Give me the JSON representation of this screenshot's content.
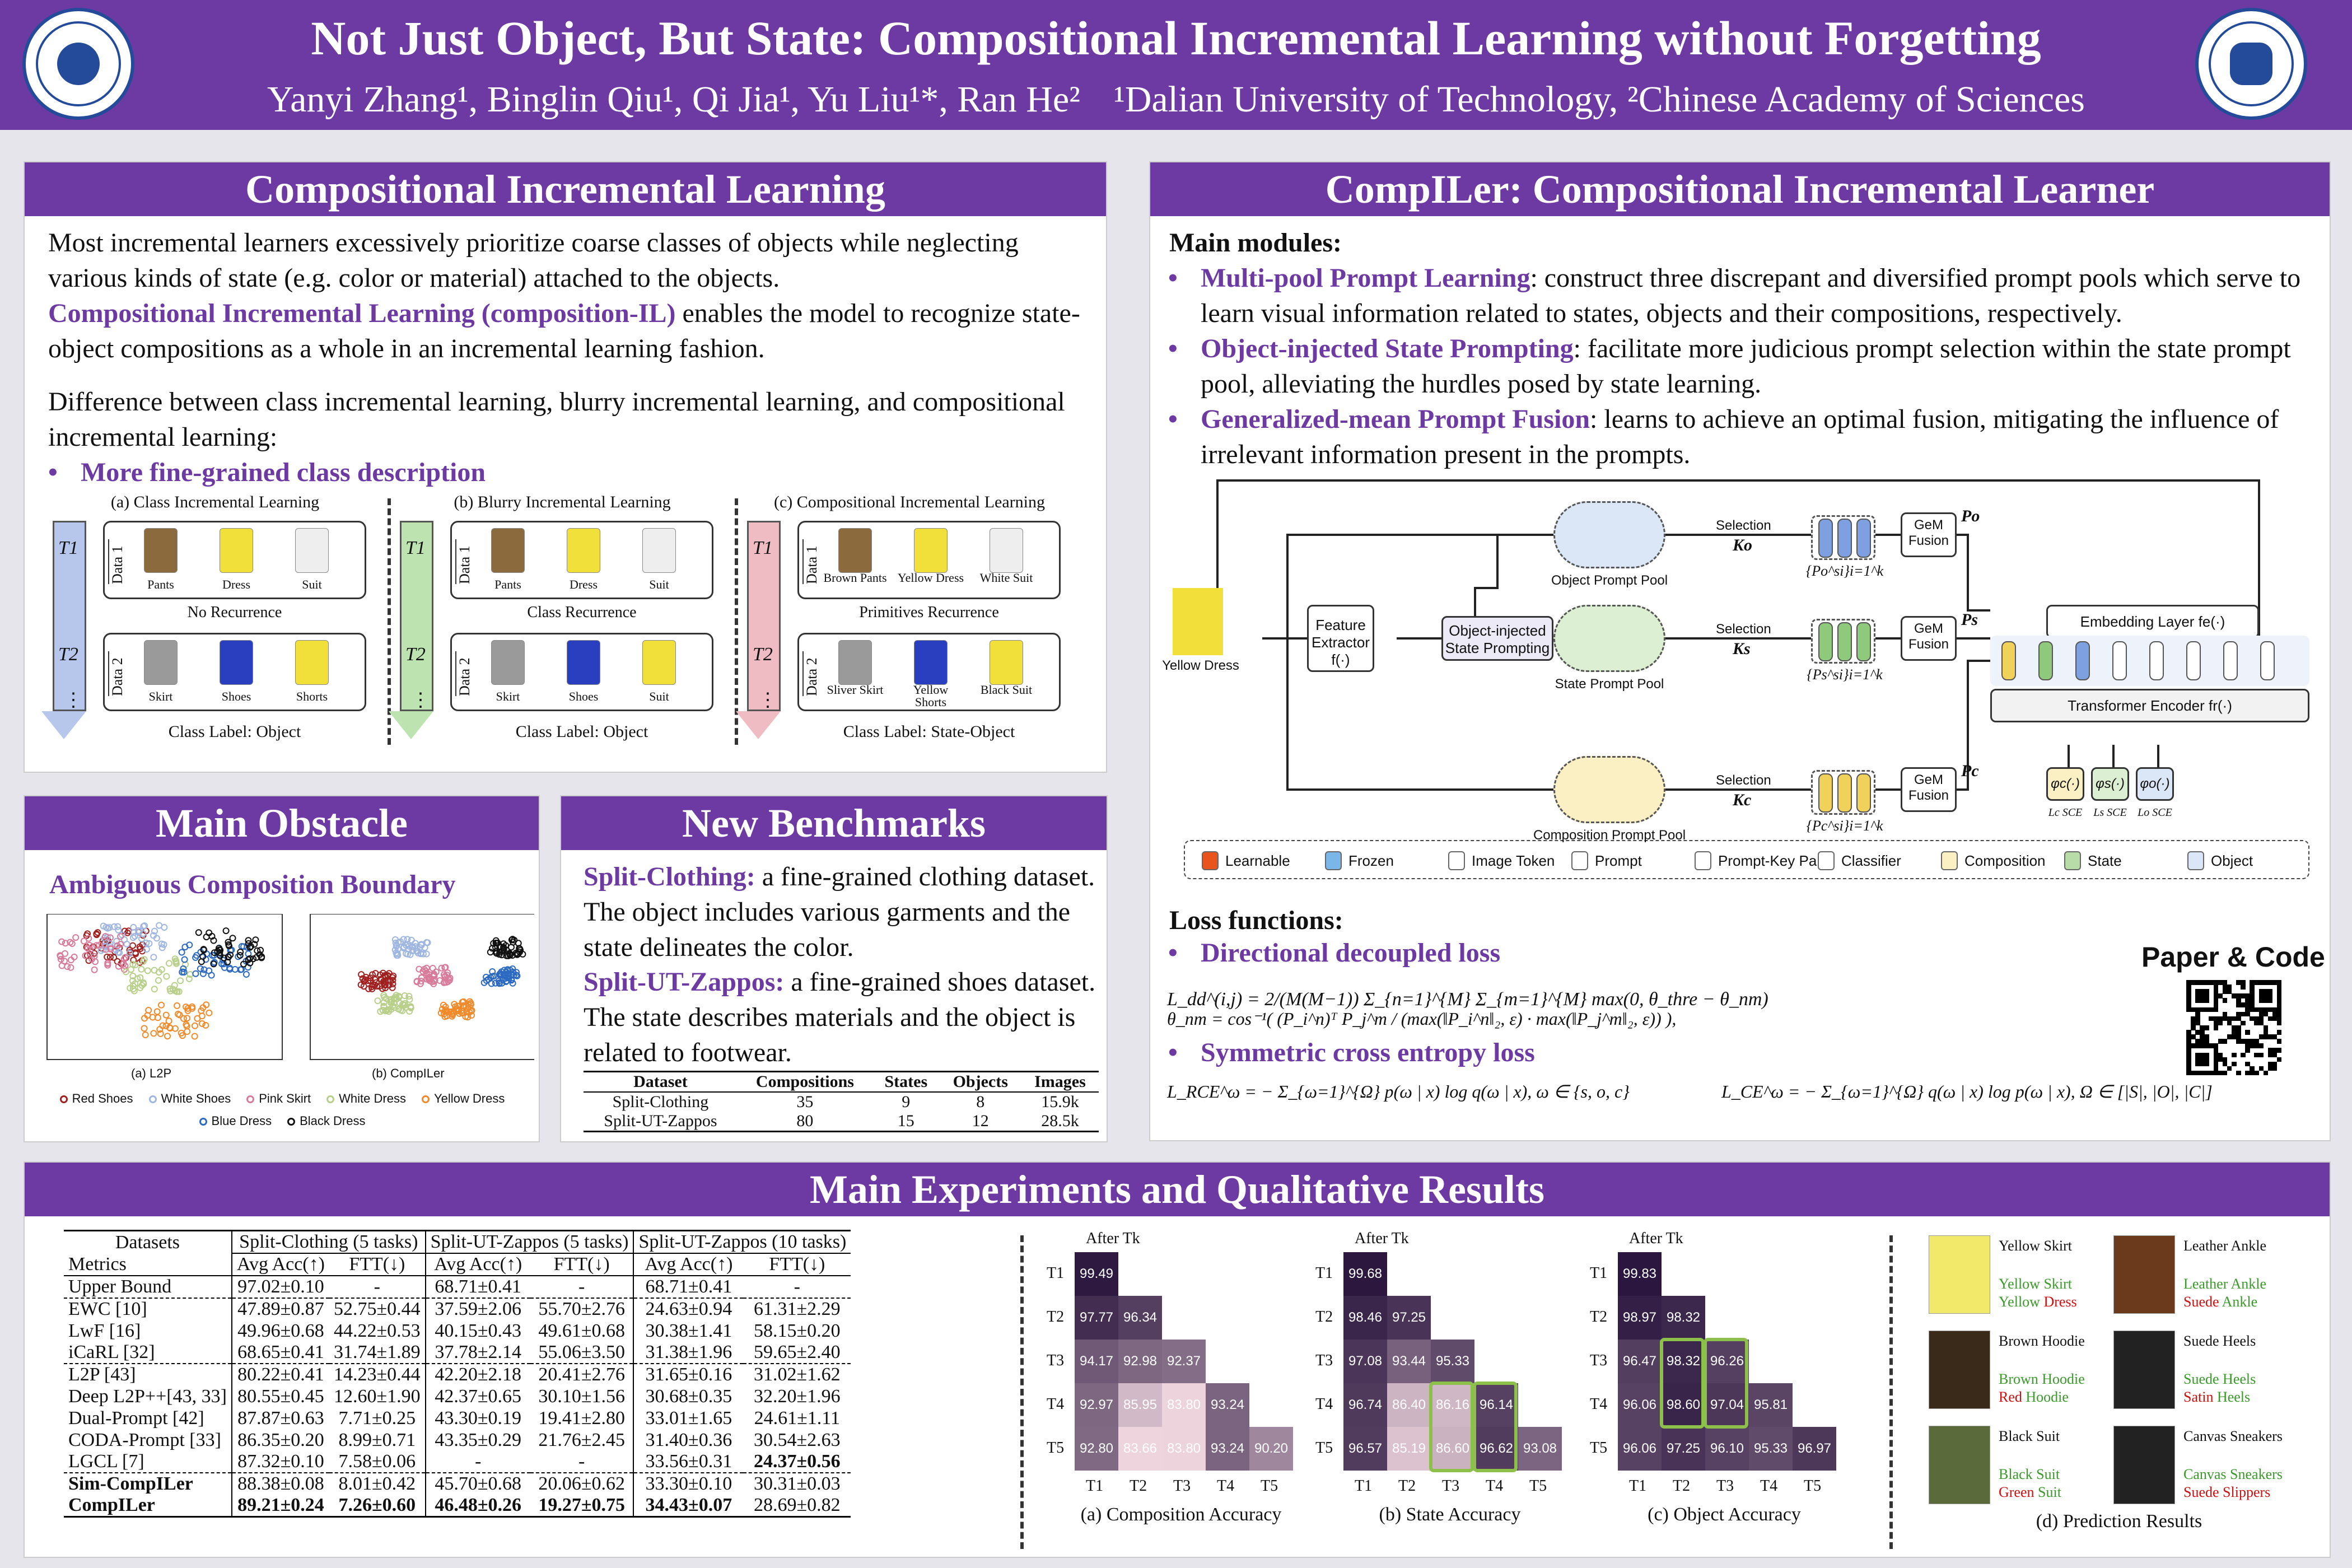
{
  "header": {
    "title": "Not Just Object, But State: Compositional Incremental Learning without Forgetting",
    "authors": "Yanyi Zhang¹, Binglin Qiu¹, Qi Jia¹, Yu Liu¹*, Ran He²",
    "affiliations": "¹Dalian University of Technology, ²Chinese Academy of Sciences",
    "logo_left": "dalian-university-logo",
    "logo_right": "chinese-academy-of-sciences-logo"
  },
  "cil": {
    "title": "Compositional Incremental Learning",
    "p1": "Most incremental learners excessively prioritize coarse classes of objects while neglecting various kinds of state (e.g. color or material) attached to the objects.",
    "p2_bold": "Compositional Incremental Learning (composition-IL)",
    "p2_rest": " enables the model to recognize state-object compositions as a whole in an incremental learning fashion.",
    "p3": "Difference between class incremental learning, blurry incremental learning, and compositional incremental learning:",
    "bullet": "More fine-grained class description",
    "fig_a": {
      "caption": "(a) Class Incremental Learning",
      "t1": "T1",
      "t2": "T2",
      "d1": "Data 1",
      "d2": "Data 2",
      "items1": [
        "Pants",
        "Dress",
        "Suit"
      ],
      "items2": [
        "Skirt",
        "Shoes",
        "Shorts"
      ],
      "note": "No Recurrence",
      "label": "Class Label: Object"
    },
    "fig_b": {
      "caption": "(b) Blurry Incremental Learning",
      "t1": "T1",
      "t2": "T2",
      "d1": "Data 1",
      "d2": "Data 2",
      "items1": [
        "Pants",
        "Dress",
        "Suit"
      ],
      "items2": [
        "Skirt",
        "Shoes",
        "Suit"
      ],
      "note": "Class Recurrence",
      "label": "Class Label: Object"
    },
    "fig_c": {
      "caption": "(c) Compositional Incremental Learning",
      "t1": "T1",
      "t2": "T2",
      "d1": "Data 1",
      "d2": "Data 2",
      "items1": [
        "Brown Pants",
        "Yellow Dress",
        "White Suit"
      ],
      "items2": [
        "Sliver Skirt",
        "Yellow Shorts",
        "Black Suit"
      ],
      "note": "Primitives Recurrence",
      "label": "Class Label: State-Object"
    },
    "ellipsis": "⋮"
  },
  "obstacle": {
    "title": "Main Obstacle",
    "subtitle": "Ambiguous Composition Boundary",
    "cap_a": "(a) L2P",
    "cap_b": "(b) CompILer",
    "legend": [
      {
        "name": "Red Shoes",
        "color": "#a02020"
      },
      {
        "name": "White Shoes",
        "color": "#9fb6e0"
      },
      {
        "name": "Pink Skirt",
        "color": "#d87a9a"
      },
      {
        "name": "White Dress",
        "color": "#b8cf8a"
      },
      {
        "name": "Yellow Dress",
        "color": "#f08a2a"
      },
      {
        "name": "Blue Dress",
        "color": "#2c6ac2"
      },
      {
        "name": "Black Dress",
        "color": "#111111"
      }
    ]
  },
  "bench": {
    "title": "New Benchmarks",
    "b1_bold": "Split-Clothing:",
    "b1": " a fine-grained clothing dataset. The object includes various garments and the state delineates the color.",
    "b2_bold": "Split-UT-Zappos:",
    "b2": " a fine-grained shoes dataset. The state describes materials and the object is related to footwear.",
    "headers": [
      "Dataset",
      "Compositions",
      "States",
      "Objects",
      "Images"
    ],
    "rows": [
      [
        "Split-Clothing",
        "35",
        "9",
        "8",
        "15.9k"
      ],
      [
        "Split-UT-Zappos",
        "80",
        "15",
        "12",
        "28.5k"
      ]
    ]
  },
  "compiler": {
    "title": "CompILer: Compositional Incremental Learner",
    "modules_title": "Main modules:",
    "m1_bold": "Multi-pool Prompt Learning",
    "m1": ": construct three discrepant and diversified prompt pools which serve to learn visual information related to states, objects and their compositions, respectively.",
    "m2_bold": "Object-injected State Prompting",
    "m2": ": facilitate more judicious prompt selection within the state prompt pool, alleviating the hurdles posed by state learning.",
    "m3_bold": "Generalized-mean Prompt Fusion",
    "m3": ": learns to achieve an optimal fusion, mitigating the influence of irrelevant information present in the prompts.",
    "diagram": {
      "input": "Yellow Dress",
      "extractor": "Feature Extractor f(·)",
      "ois": "Object-injected State Prompting",
      "pools": [
        "Object Prompt Pool",
        "State Prompt Pool",
        "Composition Prompt Pool"
      ],
      "selection": "Selection",
      "keys": [
        "Ko",
        "Ks",
        "Kc"
      ],
      "sets": [
        "{Po^si}i=1^k",
        "{Ps^si}i=1^k",
        "{Pc^si}i=1^k"
      ],
      "gem": "GeM Fusion",
      "outs": [
        "Po",
        "Ps",
        "Pc"
      ],
      "embed": "Embedding Layer fe(·)",
      "encoder": "Transformer Encoder fr(·)",
      "heads": [
        "φc(·)",
        "φs(·)",
        "φo(·)"
      ],
      "losses": [
        "Lc SCE",
        "Ls SCE",
        "Lo SCE"
      ],
      "legend": [
        "Learnable",
        "Frozen",
        "Image Token",
        "Prompt",
        "Prompt-Key Pair",
        "Classifier",
        "Composition",
        "State",
        "Object"
      ]
    },
    "loss_title": "Loss functions:",
    "l1": "Directional decoupled loss",
    "l1_eq": "L_dd^(i,j) = 2/(M(M−1)) Σ_{n=1}^{M} Σ_{m=1}^{M} max(0, θ_thre − θ_nm)",
    "l1_eq2": "θ_nm = cos⁻¹( (P_i^n)ᵀ P_j^m / (max(‖P_i^n‖₂, ε) · max(‖P_j^m‖₂, ε)) ),",
    "l2": "Symmetric cross entropy loss",
    "l2_eq": "L_RCE^ω = − Σ_{ω=1}^{Ω} p(ω | x) log q(ω | x), ω ∈ {s, o, c}",
    "l2_eq2": "L_CE^ω = − Σ_{ω=1}^{Ω} q(ω | x) log p(ω | x), Ω ∈ [|S|, |O|, |C|]",
    "paper_code": "Paper & Code"
  },
  "results": {
    "title": "Main Experiments and Qualitative Results",
    "table": {
      "h1": [
        "Datasets",
        "Split-Clothing (5 tasks)",
        "Split-UT-Zappos (5 tasks)",
        "Split-UT-Zappos (10 tasks)"
      ],
      "h2": [
        "Metrics",
        "Avg Acc(↑)",
        "FTT(↓)",
        "Avg Acc(↑)",
        "FTT(↓)",
        "Avg Acc(↑)",
        "FTT(↓)"
      ],
      "rows": [
        [
          "Upper Bound",
          "97.02±0.10",
          "-",
          "68.71±0.41",
          "-",
          "68.71±0.41",
          "-"
        ],
        [
          "EWC [10]",
          "47.89±0.87",
          "52.75±0.44",
          "37.59±2.06",
          "55.70±2.76",
          "24.63±0.94",
          "61.31±2.29"
        ],
        [
          "LwF [16]",
          "49.96±0.68",
          "44.22±0.53",
          "40.15±0.43",
          "49.61±0.68",
          "30.38±1.41",
          "58.15±0.20"
        ],
        [
          "iCaRL [32]",
          "68.65±0.41",
          "31.74±1.89",
          "37.78±2.14",
          "55.06±3.50",
          "31.38±1.96",
          "59.65±2.40"
        ],
        [
          "L2P [43]",
          "80.22±0.41",
          "14.23±0.44",
          "42.20±2.18",
          "20.41±2.76",
          "31.65±0.16",
          "31.02±1.62"
        ],
        [
          "Deep L2P++[43, 33]",
          "80.55±0.45",
          "12.60±1.90",
          "42.37±0.65",
          "30.10±1.56",
          "30.68±0.35",
          "32.20±1.96"
        ],
        [
          "Dual-Prompt [42]",
          "87.87±0.63",
          "7.71±0.25",
          "43.30±0.19",
          "19.41±2.80",
          "33.01±1.65",
          "24.61±1.11"
        ],
        [
          "CODA-Prompt [33]",
          "86.35±0.20",
          "8.99±0.71",
          "43.35±0.29",
          "21.76±2.45",
          "31.40±0.36",
          "30.54±2.63"
        ],
        [
          "LGCL [7]",
          "87.32±0.10",
          "7.58±0.06",
          "-",
          "-",
          "33.56±0.31",
          "24.37±0.56"
        ],
        [
          "Sim-CompILer",
          "88.38±0.08",
          "8.01±0.42",
          "45.70±0.68",
          "20.06±0.62",
          "33.30±0.10",
          "30.31±0.03"
        ],
        [
          "CompILer",
          "89.21±0.24",
          "7.26±0.60",
          "46.48±0.26",
          "19.27±0.75",
          "34.43±0.07",
          "28.69±0.82"
        ]
      ]
    },
    "heatmaps": [
      {
        "caption": "(a) Composition Accuracy",
        "rows": [
          [
            99.49
          ],
          [
            97.77,
            96.34
          ],
          [
            94.17,
            92.98,
            92.37
          ],
          [
            92.97,
            85.95,
            83.8,
            93.24
          ],
          [
            92.8,
            83.66,
            83.8,
            93.24,
            90.2
          ]
        ]
      },
      {
        "caption": "(b) State Accuracy",
        "rows": [
          [
            99.68
          ],
          [
            98.46,
            97.25
          ],
          [
            97.08,
            93.44,
            95.33
          ],
          [
            96.74,
            86.4,
            86.16,
            96.14
          ],
          [
            96.57,
            85.19,
            86.6,
            96.62,
            93.08
          ]
        ]
      },
      {
        "caption": "(c) Object Accuracy",
        "rows": [
          [
            99.83
          ],
          [
            98.97,
            98.32
          ],
          [
            96.47,
            98.32,
            96.26
          ],
          [
            96.06,
            98.6,
            97.04,
            95.81
          ],
          [
            96.06,
            97.25,
            96.1,
            95.33,
            96.97
          ]
        ]
      }
    ],
    "after": "After Tk",
    "tlabels": [
      "T1",
      "T2",
      "T3",
      "T4",
      "T5"
    ],
    "pred_caption": "(d) Prediction Results",
    "preds": [
      {
        "title": "Yellow Skirt",
        "gt": "Yellow Skirt",
        "pred_s": "Yellow",
        "pred_o": "Dress",
        "s_ok": true,
        "o_ok": false
      },
      {
        "title": "Leather Ankle",
        "gt": "Leather Ankle",
        "pred_s": "Suede",
        "pred_o": "Ankle",
        "s_ok": false,
        "o_ok": true
      },
      {
        "title": "Brown Hoodie",
        "gt": "Brown Hoodie",
        "pred_s": "Red",
        "pred_o": "Hoodie",
        "s_ok": false,
        "o_ok": true
      },
      {
        "title": "Suede Heels",
        "gt": "Suede Heels",
        "pred_s": "Satin",
        "pred_o": "Heels",
        "s_ok": false,
        "o_ok": true
      },
      {
        "title": "Black Suit",
        "gt": "Black Suit",
        "pred_s": "Green",
        "pred_o": "Suit",
        "s_ok": false,
        "o_ok": true
      },
      {
        "title": "Canvas Sneakers",
        "gt": "Canvas Sneakers",
        "pred_s": "Suede",
        "pred_o": "Slippers",
        "s_ok": false,
        "o_ok": false
      }
    ]
  }
}
